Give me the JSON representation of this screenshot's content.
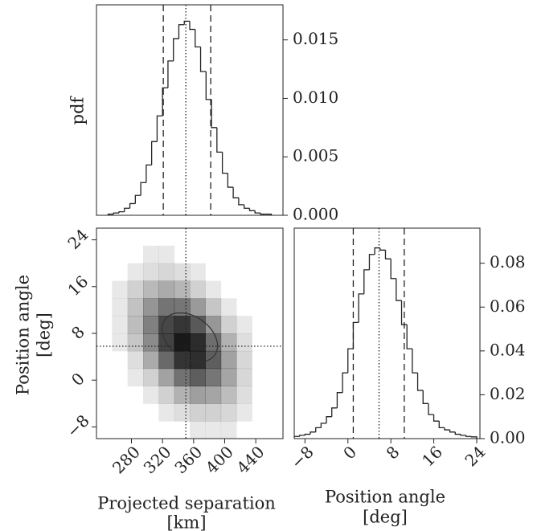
{
  "chart_data": [
    {
      "type": "histogram",
      "ylabel": "pdf",
      "bins": [
        250,
        257,
        264,
        271,
        278,
        285,
        292,
        299,
        306,
        313,
        320,
        327,
        334,
        341,
        348,
        355,
        362,
        369,
        376,
        383,
        390,
        397,
        404,
        411,
        418,
        425,
        432,
        439,
        446,
        453,
        460
      ],
      "values": [
        0.0001,
        0.0002,
        0.0003,
        0.0006,
        0.001,
        0.0017,
        0.0028,
        0.0043,
        0.0063,
        0.0085,
        0.0109,
        0.0132,
        0.0151,
        0.0163,
        0.0166,
        0.0159,
        0.0144,
        0.0123,
        0.0099,
        0.0075,
        0.0054,
        0.0036,
        0.0024,
        0.0015,
        0.0009,
        0.0006,
        0.0004,
        0.0002,
        0.0001,
        0.0001
      ],
      "color": "#222222",
      "xlim": [
        235,
        475
      ],
      "ylim": [
        0,
        0.018
      ],
      "yticks": [
        {
          "value": 0,
          "label": "0.000"
        },
        {
          "value": 0.005,
          "label": "0.005"
        },
        {
          "value": 0.01,
          "label": "0.010"
        },
        {
          "value": 0.015,
          "label": "0.015"
        }
      ],
      "quantiles": [
        321,
        350,
        382
      ]
    },
    {
      "type": "hist2d",
      "xlabel": [
        "Projected separation",
        "[km]"
      ],
      "ylabel": [
        "Position angle",
        "[deg]"
      ],
      "xbins": [
        235,
        255,
        275,
        295,
        315,
        335,
        355,
        375,
        395,
        415,
        435,
        455,
        475
      ],
      "ybins": [
        -10,
        -7,
        -4,
        -1,
        2,
        5,
        8,
        11,
        14,
        17,
        20,
        23,
        26
      ],
      "values": [
        [
          0,
          0,
          0,
          0,
          0,
          0,
          1,
          1,
          1,
          0,
          0,
          0
        ],
        [
          0,
          0,
          0,
          0,
          1,
          2,
          4,
          4,
          3,
          1,
          0,
          0
        ],
        [
          0,
          0,
          0,
          1,
          4,
          11,
          17,
          15,
          8,
          2,
          0,
          0
        ],
        [
          0,
          0,
          1,
          4,
          16,
          37,
          48,
          35,
          15,
          3,
          0,
          0
        ],
        [
          0,
          0,
          2,
          13,
          42,
          77,
          81,
          48,
          16,
          3,
          0,
          0
        ],
        [
          0,
          1,
          6,
          25,
          66,
          98,
          83,
          39,
          11,
          2,
          0,
          0
        ],
        [
          0,
          1,
          8,
          30,
          63,
          75,
          51,
          20,
          4,
          1,
          0,
          0
        ],
        [
          0,
          1,
          7,
          21,
          36,
          35,
          19,
          6,
          1,
          0,
          0,
          0
        ],
        [
          0,
          1,
          4,
          9,
          13,
          10,
          4,
          1,
          0,
          0,
          0,
          0
        ],
        [
          0,
          0,
          1,
          2,
          3,
          2,
          1,
          0,
          0,
          0,
          0,
          0
        ],
        [
          0,
          0,
          0,
          1,
          1,
          0,
          0,
          0,
          0,
          0,
          0,
          0
        ],
        [
          0,
          0,
          0,
          0,
          0,
          0,
          0,
          0,
          0,
          0,
          0,
          0
        ]
      ],
      "color": "#000000",
      "xlim": [
        235,
        475
      ],
      "ylim": [
        -10,
        26
      ],
      "xticks": [
        280,
        320,
        360,
        400,
        440
      ],
      "yticks": [
        {
          "value": -8,
          "label": "−8"
        },
        0,
        8,
        16,
        24
      ],
      "x_median": 350,
      "y_median": 5.8
    },
    {
      "type": "histogram",
      "xlabel": [
        "Position angle",
        "[deg]"
      ],
      "bins": [
        -10,
        -9,
        -8,
        -7,
        -6,
        -5,
        -4,
        -3,
        -2,
        -1,
        0,
        1,
        2,
        3,
        4,
        5,
        6,
        7,
        8,
        9,
        10,
        11,
        12,
        13,
        14,
        15,
        16,
        17,
        18,
        19,
        20,
        21,
        22,
        23,
        24
      ],
      "values": [
        0.001,
        0.0015,
        0.002,
        0.003,
        0.005,
        0.007,
        0.01,
        0.014,
        0.021,
        0.03,
        0.041,
        0.053,
        0.066,
        0.077,
        0.084,
        0.087,
        0.086,
        0.082,
        0.073,
        0.063,
        0.052,
        0.041,
        0.03,
        0.022,
        0.016,
        0.011,
        0.008,
        0.005,
        0.004,
        0.003,
        0.002,
        0.0015,
        0.001,
        0.0008
      ],
      "color": "#222222",
      "xlim": [
        -10,
        24.6
      ],
      "ylim": [
        0,
        0.096
      ],
      "xticks": [
        {
          "value": -8,
          "label": "−8"
        },
        0,
        8,
        16,
        24
      ],
      "yticks": [
        {
          "value": 0,
          "label": "0.00"
        },
        {
          "value": 0.02,
          "label": "0.02"
        },
        {
          "value": 0.04,
          "label": "0.04"
        },
        {
          "value": 0.06,
          "label": "0.06"
        },
        {
          "value": 0.08,
          "label": "0.08"
        }
      ],
      "quantiles": [
        1,
        5.8,
        10.5
      ]
    }
  ]
}
